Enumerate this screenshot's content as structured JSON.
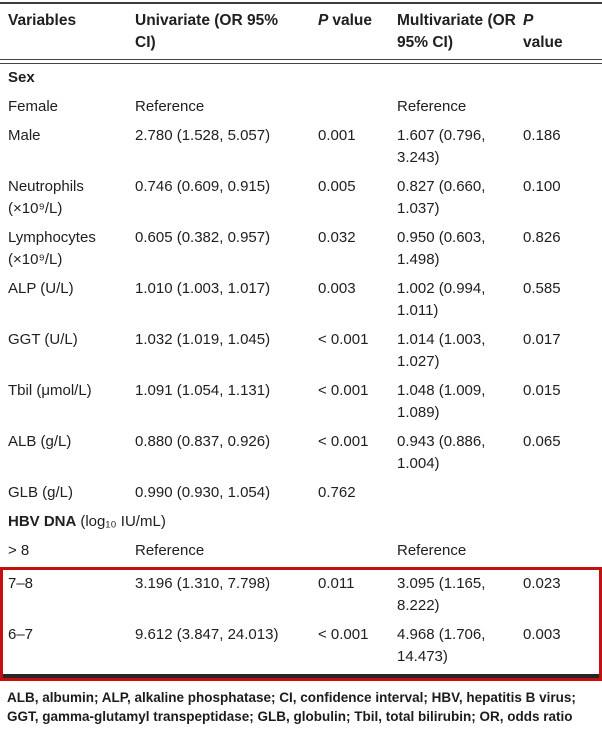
{
  "accent_colors": {
    "highlight_border": "#c40f0f",
    "rule_color": "#3d3d3d",
    "text_color": "#202020"
  },
  "table": {
    "columns": {
      "variables": "Variables",
      "univariate": "Univariate (OR 95% CI)",
      "p_italic": "P",
      "p_rest": "value",
      "multivariate": "Multivariate (OR 95% CI)"
    },
    "rows": [
      {
        "type": "section",
        "bold": "Sex",
        "rest": ""
      },
      {
        "type": "data",
        "variable": "Female",
        "univariate": "Reference",
        "p1": "",
        "multivariate": "Reference",
        "p2": ""
      },
      {
        "type": "data",
        "variable": "Male",
        "univariate": "2.780 (1.528, 5.057)",
        "p1": "0.001",
        "multivariate": "1.607 (0.796, 3.243)",
        "p2": "0.186"
      },
      {
        "type": "data",
        "variable": "Neutrophils (×10⁹/L)",
        "univariate": "0.746 (0.609, 0.915)",
        "p1": "0.005",
        "multivariate": "0.827 (0.660, 1.037)",
        "p2": "0.100"
      },
      {
        "type": "data",
        "variable": "Lymphocytes (×10⁹/L)",
        "univariate": "0.605 (0.382, 0.957)",
        "p1": "0.032",
        "multivariate": "0.950 (0.603, 1.498)",
        "p2": "0.826"
      },
      {
        "type": "data",
        "variable": "ALP (U/L)",
        "univariate": "1.010 (1.003, 1.017)",
        "p1": "0.003",
        "multivariate": "1.002 (0.994, 1.011)",
        "p2": "0.585"
      },
      {
        "type": "data",
        "variable": "GGT (U/L)",
        "univariate": "1.032 (1.019, 1.045)",
        "p1": "< 0.001",
        "multivariate": "1.014 (1.003, 1.027)",
        "p2": "0.017"
      },
      {
        "type": "data",
        "variable": "Tbil (μmol/L)",
        "univariate": "1.091 (1.054, 1.131)",
        "p1": "< 0.001",
        "multivariate": "1.048 (1.009, 1.089)",
        "p2": "0.015"
      },
      {
        "type": "data",
        "variable": "ALB (g/L)",
        "univariate": "0.880 (0.837, 0.926)",
        "p1": "< 0.001",
        "multivariate": "0.943 (0.886, 1.004)",
        "p2": "0.065"
      },
      {
        "type": "data",
        "variable": "GLB (g/L)",
        "univariate": "0.990 (0.930, 1.054)",
        "p1": "0.762",
        "multivariate": "",
        "p2": ""
      },
      {
        "type": "section",
        "bold": "HBV DNA",
        "rest": "(log₁₀ IU/mL)"
      },
      {
        "type": "data",
        "variable": "> 8",
        "univariate": "Reference",
        "p1": "",
        "multivariate": "Reference",
        "p2": ""
      },
      {
        "type": "data",
        "variable": "7–8",
        "univariate": "3.196 (1.310, 7.798)",
        "p1": "0.011",
        "multivariate": "3.095 (1.165, 8.222)",
        "p2": "0.023",
        "highlighted": true
      },
      {
        "type": "data",
        "variable": "6–7",
        "univariate": "9.612 (3.847, 24.013)",
        "p1": "< 0.001",
        "multivariate": "4.968 (1.706, 14.473)",
        "p2": "0.003",
        "highlighted": true
      }
    ]
  },
  "footnote": "ALB, albumin; ALP, alkaline phosphatase; CI, confidence interval; HBV, hepatitis B virus; GGT, gamma-glutamyl transpeptidase; GLB, globulin; Tbil, total bilirubin; OR, odds ratio"
}
